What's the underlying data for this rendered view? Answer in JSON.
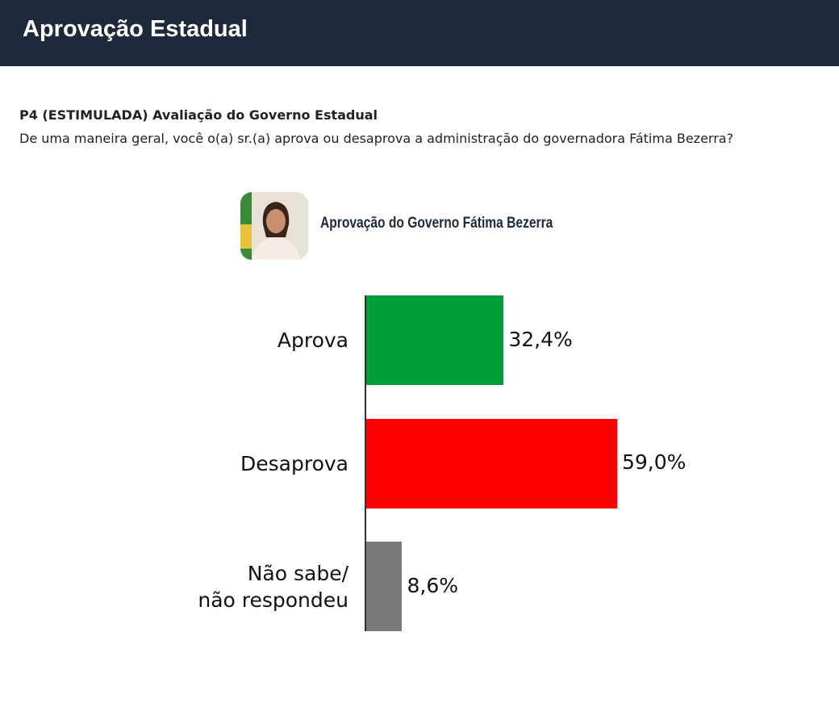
{
  "header": {
    "title": "Aprovação Estadual"
  },
  "question": {
    "code": "P4 (ESTIMULADA) Avaliação do Governo Estadual",
    "text": "De uma maneira geral, você o(a) sr.(a) aprova ou desaprova a administração do governadora Fátima Bezerra?"
  },
  "chart_data": {
    "type": "bar",
    "orientation": "horizontal",
    "title": "Aprovação do Governo Fátima Bezerra",
    "categories": [
      "Aprova",
      "Desaprova",
      "Não sabe/\nnão respondeu"
    ],
    "values": [
      32.4,
      59.0,
      8.6
    ],
    "value_labels": [
      "32,4%",
      "59,0%",
      "8,6%"
    ],
    "colors": [
      "#009e3a",
      "#ff0000",
      "#7a7a7a"
    ]
  }
}
